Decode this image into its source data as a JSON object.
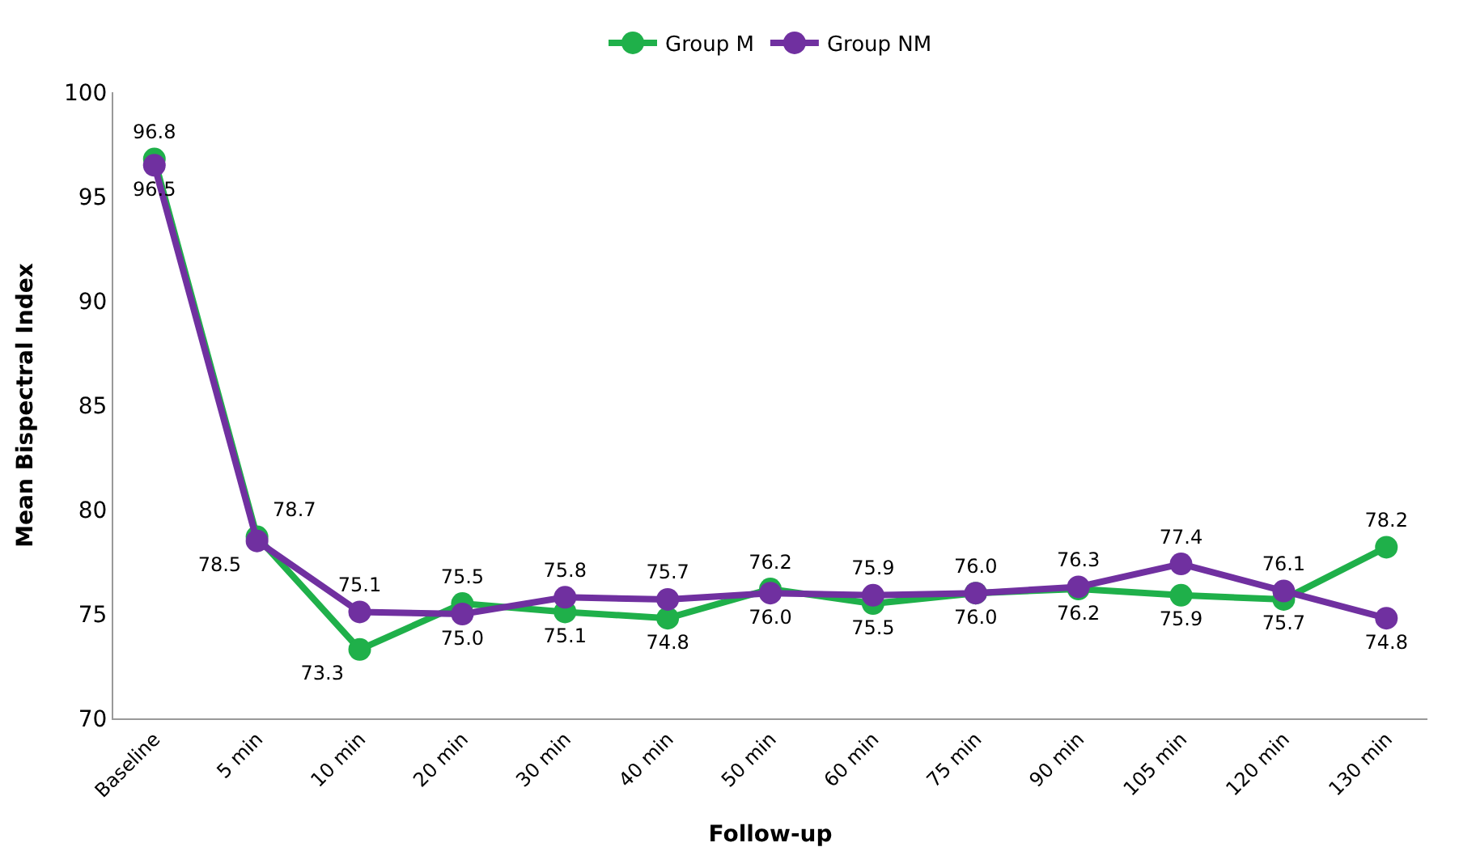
{
  "chart_data": {
    "type": "line",
    "xlabel": "Follow-up",
    "ylabel": "Mean Bispectral Index",
    "categories": [
      "Baseline",
      "5 min",
      "10 min",
      "20 min",
      "30 min",
      "40 min",
      "50 min",
      "60 min",
      "75 min",
      "90 min",
      "105 min",
      "120 min",
      "130 min"
    ],
    "series": [
      {
        "name": "Group M",
        "color": "#1fb04a",
        "values": [
          96.8,
          78.7,
          73.3,
          75.5,
          75.1,
          74.8,
          76.2,
          75.5,
          76.0,
          76.2,
          75.9,
          75.7,
          78.2
        ],
        "value_labels": [
          "96.8",
          "78.7",
          "73.3",
          "75.5",
          "75.1",
          "74.8",
          "76.2",
          "75.5",
          "76.0",
          "76.2",
          "75.9",
          "75.7",
          "78.2"
        ]
      },
      {
        "name": "Group NM",
        "color": "#7030a0",
        "values": [
          96.5,
          78.5,
          75.1,
          75.0,
          75.8,
          75.7,
          76.0,
          75.9,
          76.0,
          76.3,
          77.4,
          76.1,
          74.8
        ],
        "value_labels": [
          "96.5",
          "78.5",
          "75.1",
          "75.0",
          "75.8",
          "75.7",
          "76.0",
          "75.9",
          "76.0",
          "76.3",
          "77.4",
          "76.1",
          "74.8"
        ]
      }
    ],
    "ylim": [
      70,
      100
    ],
    "yticks": [
      70,
      75,
      80,
      85,
      90,
      95,
      100
    ],
    "legend": "top",
    "marker": "circle"
  }
}
